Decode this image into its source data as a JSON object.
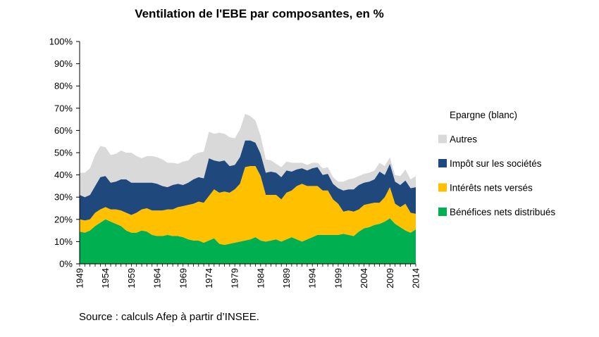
{
  "chart_data": {
    "type": "area",
    "stacked": true,
    "title": "Ventilation de l'EBE par composantes, en %",
    "xlabel": "",
    "ylabel": "",
    "ylim": [
      0,
      100
    ],
    "x_tick_labels": [
      "1949",
      "1954",
      "1959",
      "1964",
      "1969",
      "1974",
      "1979",
      "1984",
      "1989",
      "1994",
      "1999",
      "2004",
      "2009",
      "2014"
    ],
    "y_tick_labels": [
      "0%",
      "10%",
      "20%",
      "30%",
      "40%",
      "50%",
      "60%",
      "70%",
      "80%",
      "90%",
      "100%"
    ],
    "x": [
      1949,
      1950,
      1951,
      1952,
      1953,
      1954,
      1955,
      1956,
      1957,
      1958,
      1959,
      1960,
      1961,
      1962,
      1963,
      1964,
      1965,
      1966,
      1967,
      1968,
      1969,
      1970,
      1971,
      1972,
      1973,
      1974,
      1975,
      1976,
      1977,
      1978,
      1979,
      1980,
      1981,
      1982,
      1983,
      1984,
      1985,
      1986,
      1987,
      1988,
      1989,
      1990,
      1991,
      1992,
      1993,
      1994,
      1995,
      1996,
      1997,
      1998,
      1999,
      2000,
      2001,
      2002,
      2003,
      2004,
      2005,
      2006,
      2007,
      2008,
      2009,
      2010,
      2011,
      2012,
      2013,
      2014
    ],
    "series": [
      {
        "name": "Bénéfices nets distribués",
        "color": "#00b050",
        "values": [
          14.5,
          14,
          15,
          17,
          18.5,
          20,
          19,
          18,
          17,
          15,
          14,
          14,
          15,
          14.5,
          13,
          12.5,
          12.5,
          13,
          12.5,
          12.5,
          12,
          11,
          10.5,
          10.5,
          9.5,
          10.5,
          11.5,
          9,
          8.5,
          9,
          9.5,
          10,
          10.5,
          11,
          12,
          10.5,
          10,
          10.5,
          11,
          10,
          11,
          12,
          11,
          10,
          11,
          12,
          13,
          13,
          13,
          13,
          13,
          13.5,
          13,
          12.5,
          14.5,
          16,
          16.5,
          17.5,
          18,
          19,
          20.5,
          18,
          16.5,
          15,
          14,
          15.5
        ]
      },
      {
        "name": "Intérêts nets versés",
        "color": "#ffc000",
        "values": [
          5.5,
          5.5,
          5,
          6,
          6,
          5.5,
          5.5,
          6.5,
          7,
          8,
          8,
          9,
          9.5,
          10.5,
          11,
          11.5,
          11.5,
          11.5,
          12,
          13,
          14,
          15.5,
          16.5,
          17.5,
          18,
          20,
          22,
          23,
          24,
          23,
          24,
          26,
          33,
          33,
          32,
          29,
          21,
          20.5,
          20,
          19,
          21,
          21,
          24,
          26,
          24,
          23,
          22,
          20,
          20,
          16,
          14,
          10,
          11,
          11,
          10,
          10.5,
          10.5,
          10,
          9.5,
          11,
          14,
          9,
          9,
          12,
          9,
          7
        ]
      },
      {
        "name": "Impôt sur les sociétés",
        "color": "#1f497d",
        "values": [
          11,
          10.5,
          11,
          12,
          14.5,
          14,
          12,
          12.5,
          14,
          15,
          14.5,
          13.5,
          12,
          11.5,
          12.5,
          12,
          11,
          10,
          11,
          10.5,
          9.5,
          10,
          11,
          11,
          11,
          17,
          13,
          14,
          14,
          12,
          11,
          12,
          12,
          11.5,
          10.5,
          10,
          10,
          10.5,
          10,
          10,
          10,
          8.5,
          7.5,
          7,
          7,
          8,
          8.5,
          7,
          7.5,
          7,
          7,
          9.5,
          9.5,
          10,
          11,
          10,
          10,
          10.5,
          14,
          10,
          10.5,
          10,
          10,
          10.5,
          11,
          12
        ]
      },
      {
        "name": "Autres",
        "color": "#d9d9d9",
        "values": [
          10,
          11,
          12,
          14,
          14,
          13,
          12.5,
          12.5,
          13,
          12,
          13.5,
          12,
          11,
          12,
          12,
          12,
          12,
          11,
          10,
          9,
          10.5,
          10,
          11,
          11,
          12,
          12,
          12,
          13,
          12,
          13,
          12,
          12.5,
          12,
          11,
          10,
          8,
          6,
          5,
          4,
          4.5,
          4,
          4,
          3,
          2.5,
          2.5,
          2.5,
          2,
          3,
          3,
          3,
          3,
          4,
          4.5,
          5,
          4,
          4,
          4,
          4,
          4,
          4,
          3,
          3,
          4,
          5,
          4,
          5
        ]
      },
      {
        "name": "Epargne (blanc)",
        "color": "#ffffff",
        "values": [
          59,
          59,
          57,
          51,
          47,
          47.5,
          51,
          50.5,
          49,
          50,
          50,
          51.5,
          52.5,
          51.5,
          51.5,
          52,
          53,
          54.5,
          54.5,
          55,
          54,
          53.5,
          51,
          50,
          49.5,
          40.5,
          41.5,
          41,
          41.5,
          43,
          43.5,
          39.5,
          32.5,
          33.5,
          35.5,
          42.5,
          53,
          53.5,
          55,
          56.5,
          54,
          54.5,
          54.5,
          54.5,
          55.5,
          54.5,
          54.5,
          57,
          56.5,
          61,
          63,
          63,
          62,
          61.5,
          60.5,
          59.5,
          59,
          58,
          54.5,
          56,
          52,
          60,
          60.5,
          57.5,
          62,
          60.5
        ]
      }
    ],
    "legend_position": "right",
    "gridlines": false
  },
  "source_note": "Source : calculs Afep à partir d’INSEE."
}
